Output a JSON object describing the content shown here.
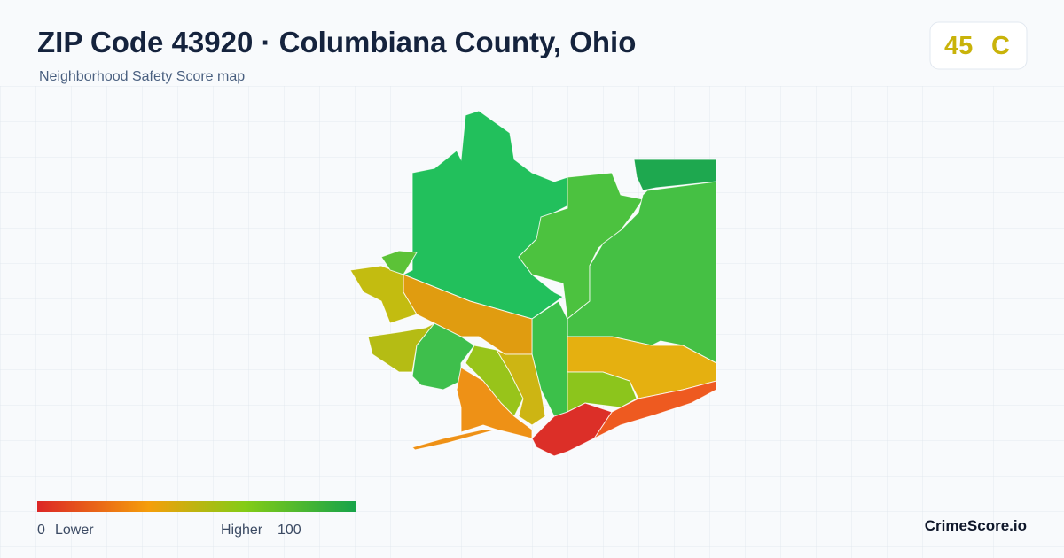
{
  "header": {
    "title": "ZIP Code 43920 · Columbiana County, Ohio",
    "subtitle": "Neighborhood Safety Score map"
  },
  "badge": {
    "score": 45,
    "grade": "C"
  },
  "legend": {
    "min": 0,
    "min_label": "Lower",
    "max_label": "Higher",
    "max": 100
  },
  "footer": {
    "brand": "CrimeScore.io"
  }
}
